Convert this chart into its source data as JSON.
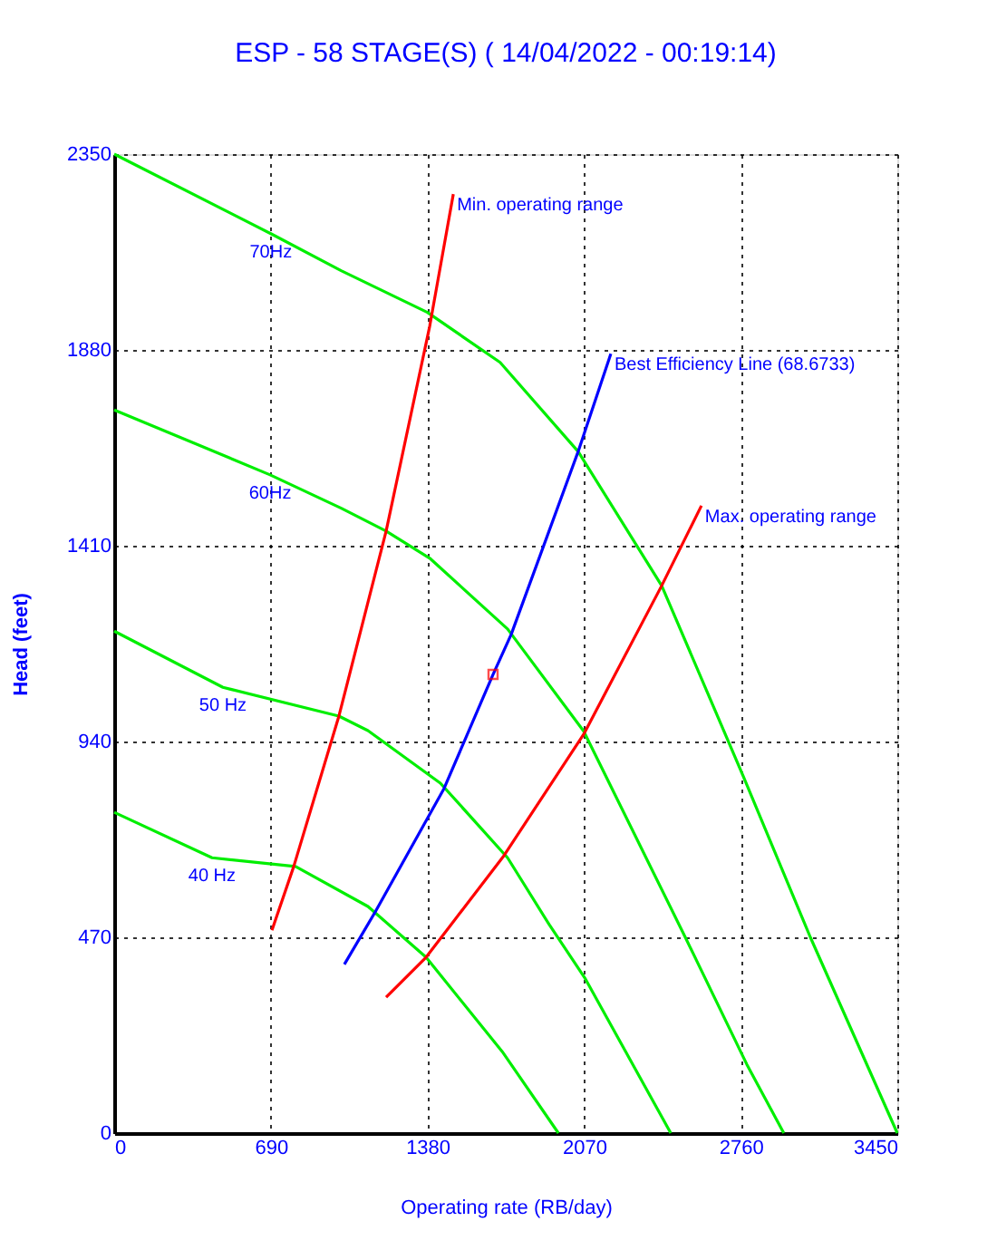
{
  "chart_data": {
    "type": "line",
    "title": "ESP - 58 STAGE(S) ( 14/04/2022 - 00:19:14)",
    "xlabel": "Operating rate  (RB/day)",
    "ylabel": "Head  (feet)",
    "xlim": [
      0,
      3450
    ],
    "ylim": [
      0,
      2350
    ],
    "xticks": [
      0,
      690,
      1380,
      2070,
      2760,
      3450
    ],
    "yticks": [
      0,
      470,
      940,
      1410,
      1880,
      2350
    ],
    "grid": true,
    "line_style": "solid",
    "series": [
      {
        "name": "70Hz",
        "color": "#00ee00",
        "x": [
          0,
          690,
          1000,
          1380,
          1700,
          2044,
          2412,
          2771,
          3067,
          3450
        ],
        "values": [
          2350,
          2159,
          2070,
          1970,
          1850,
          1636,
          1314,
          857,
          470,
          0
        ]
      },
      {
        "name": "60Hz",
        "color": "#00ee00",
        "x": [
          0,
          687,
          1000,
          1198,
          1390,
          1733,
          2068,
          2516,
          2787,
          2950
        ],
        "values": [
          1736,
          1580,
          1500,
          1445,
          1380,
          1210,
          965,
          470,
          165,
          0
        ]
      },
      {
        "name": "50 Hz",
        "color": "#00ee00",
        "x": [
          0,
          479,
          990,
          1118,
          1437,
          1733,
          1917,
          2076,
          2452
        ],
        "values": [
          1205,
          1070,
          1001,
          966,
          840,
          661,
          500,
          370,
          0
        ]
      },
      {
        "name": "40 Hz",
        "color": "#00ee00",
        "x": [
          0,
          431,
          799,
          1118,
          1374,
          1709,
          1957
        ],
        "values": [
          770,
          661,
          640,
          544,
          422,
          196,
          0
        ]
      },
      {
        "name": "Min. operating range",
        "color": "#ff0000",
        "x": [
          695,
          791,
          990,
          1198,
          1390,
          1494
        ],
        "values": [
          487,
          640,
          1001,
          1445,
          1937,
          2254
        ]
      },
      {
        "name": "Best Efficiency Line (68.6733)",
        "color": "#0000ff",
        "x": [
          1014,
          1150,
          1453,
          1669,
          1749,
          2044,
          2188
        ],
        "values": [
          405,
          531,
          827,
          1101,
          1197,
          1636,
          1871
        ]
      },
      {
        "name": "Max. operating range",
        "color": "#ff0000",
        "x": [
          1198,
          1374,
          1717,
          2068,
          2412,
          2587
        ],
        "values": [
          326,
          422,
          666,
          957,
          1314,
          1506
        ]
      },
      {
        "type": "scatter",
        "color": "#ff0000",
        "marker": "square",
        "x": [
          1669
        ],
        "values": [
          1101
        ]
      }
    ]
  }
}
